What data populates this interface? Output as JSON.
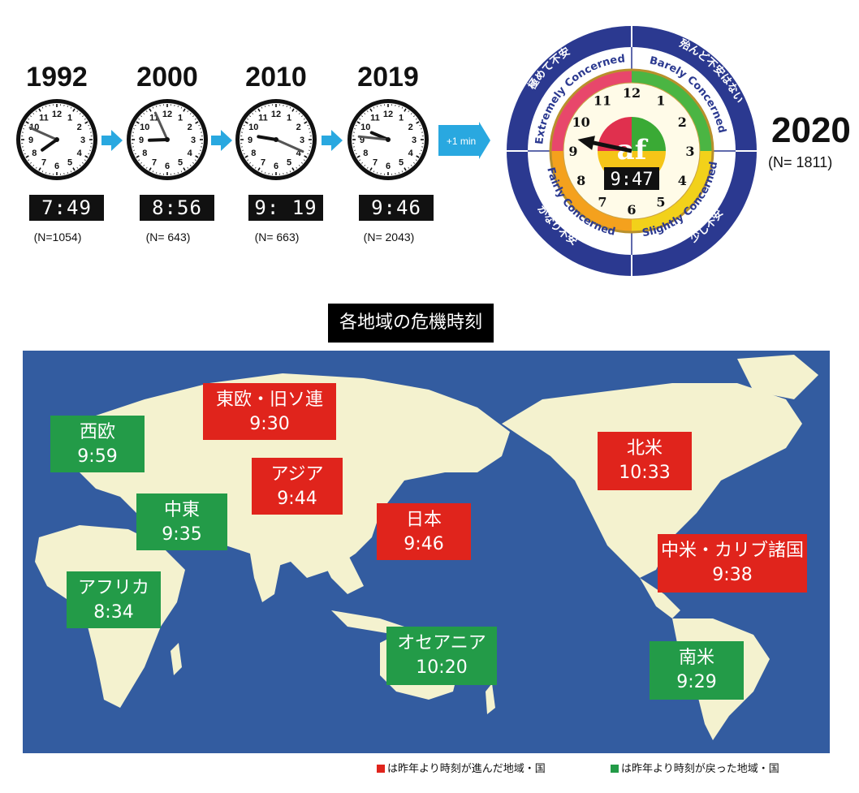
{
  "history": [
    {
      "year": "1992",
      "time": "7:49",
      "n": "(N=1054)",
      "hour": 7,
      "minute": 49
    },
    {
      "year": "2000",
      "time": "8:56",
      "n": "(N= 643)",
      "hour": 8,
      "minute": 56
    },
    {
      "year": "2010",
      "time": "9: 19",
      "n": "(N= 663)",
      "hour": 9,
      "minute": 19
    },
    {
      "year": "2019",
      "time": "9:46",
      "n": "(N= 2043)",
      "hour": 9,
      "minute": 46
    }
  ],
  "plus_label": "+1 min",
  "main_clock": {
    "time": "9:47",
    "hour": 9,
    "minute": 47,
    "logo": "af",
    "ring_texts": [
      "極めて不安",
      "殆んど不安はない",
      "少し不安",
      "かなり不安"
    ],
    "quadrant_texts": [
      "Extremely Concerned",
      "Barely Concerned",
      "Slightly Concerned",
      "Fairly Concerned"
    ],
    "colors": {
      "ring": "#2b3990",
      "red": "#e0304e",
      "green": "#3aaa35",
      "yellow": "#f5c518",
      "orange": "#f4a11d"
    }
  },
  "current": {
    "year": "2020",
    "n": "(N= 1811)"
  },
  "map_title": "各地域の危機時刻",
  "regions": [
    {
      "id": "west-europe",
      "name": "西欧",
      "time": "9:59",
      "status": "green"
    },
    {
      "id": "east-europe",
      "name": "東欧・旧ソ連",
      "time": "9:30",
      "status": "red"
    },
    {
      "id": "asia",
      "name": "アジア",
      "time": "9:44",
      "status": "red"
    },
    {
      "id": "middle-east",
      "name": "中東",
      "time": "9:35",
      "status": "green"
    },
    {
      "id": "africa",
      "name": "アフリカ",
      "time": "8:34",
      "status": "green"
    },
    {
      "id": "japan",
      "name": "日本",
      "time": "9:46",
      "status": "red"
    },
    {
      "id": "oceania",
      "name": "オセアニア",
      "time": "10:20",
      "status": "green"
    },
    {
      "id": "north-america",
      "name": "北米",
      "time": "10:33",
      "status": "red"
    },
    {
      "id": "central-america",
      "name": "中米・カリブ諸国",
      "time": "9:38",
      "status": "red"
    },
    {
      "id": "south-america",
      "name": "南米",
      "time": "9:29",
      "status": "green"
    }
  ],
  "legend": {
    "red": "は昨年より時刻が進んだ地域・国",
    "green": "は昨年より時刻が戻った地域・国"
  }
}
